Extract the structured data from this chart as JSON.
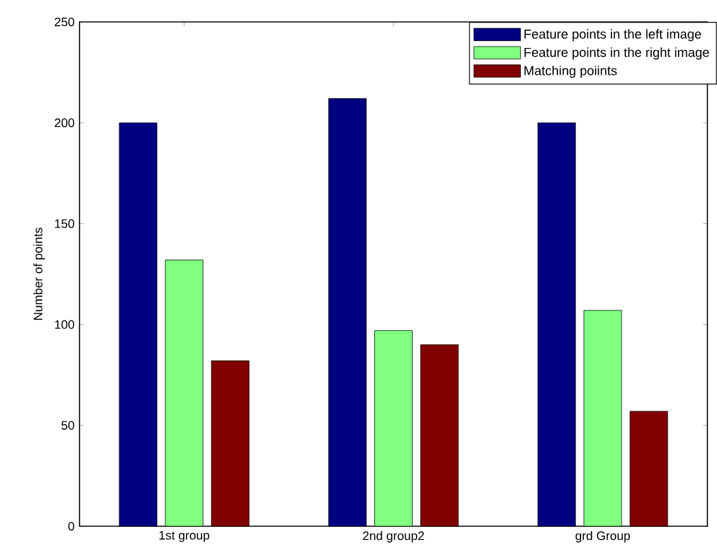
{
  "chart_data": {
    "type": "bar",
    "ylabel": "Number of points",
    "categories": [
      "1st group",
      "2nd group2",
      "grd Group"
    ],
    "series": [
      {
        "name": "Feature points in the left image",
        "color": "#000080",
        "values": [
          200,
          212,
          200
        ]
      },
      {
        "name": "Feature points in the right image",
        "color": "#80ff80",
        "values": [
          132,
          97,
          107
        ]
      },
      {
        "name": "Matching poiints",
        "color": "#800000",
        "values": [
          82,
          90,
          57
        ]
      }
    ],
    "ylim": [
      0,
      250
    ],
    "yticks": [
      0,
      50,
      100,
      150,
      200,
      250
    ],
    "legend": "top right"
  }
}
